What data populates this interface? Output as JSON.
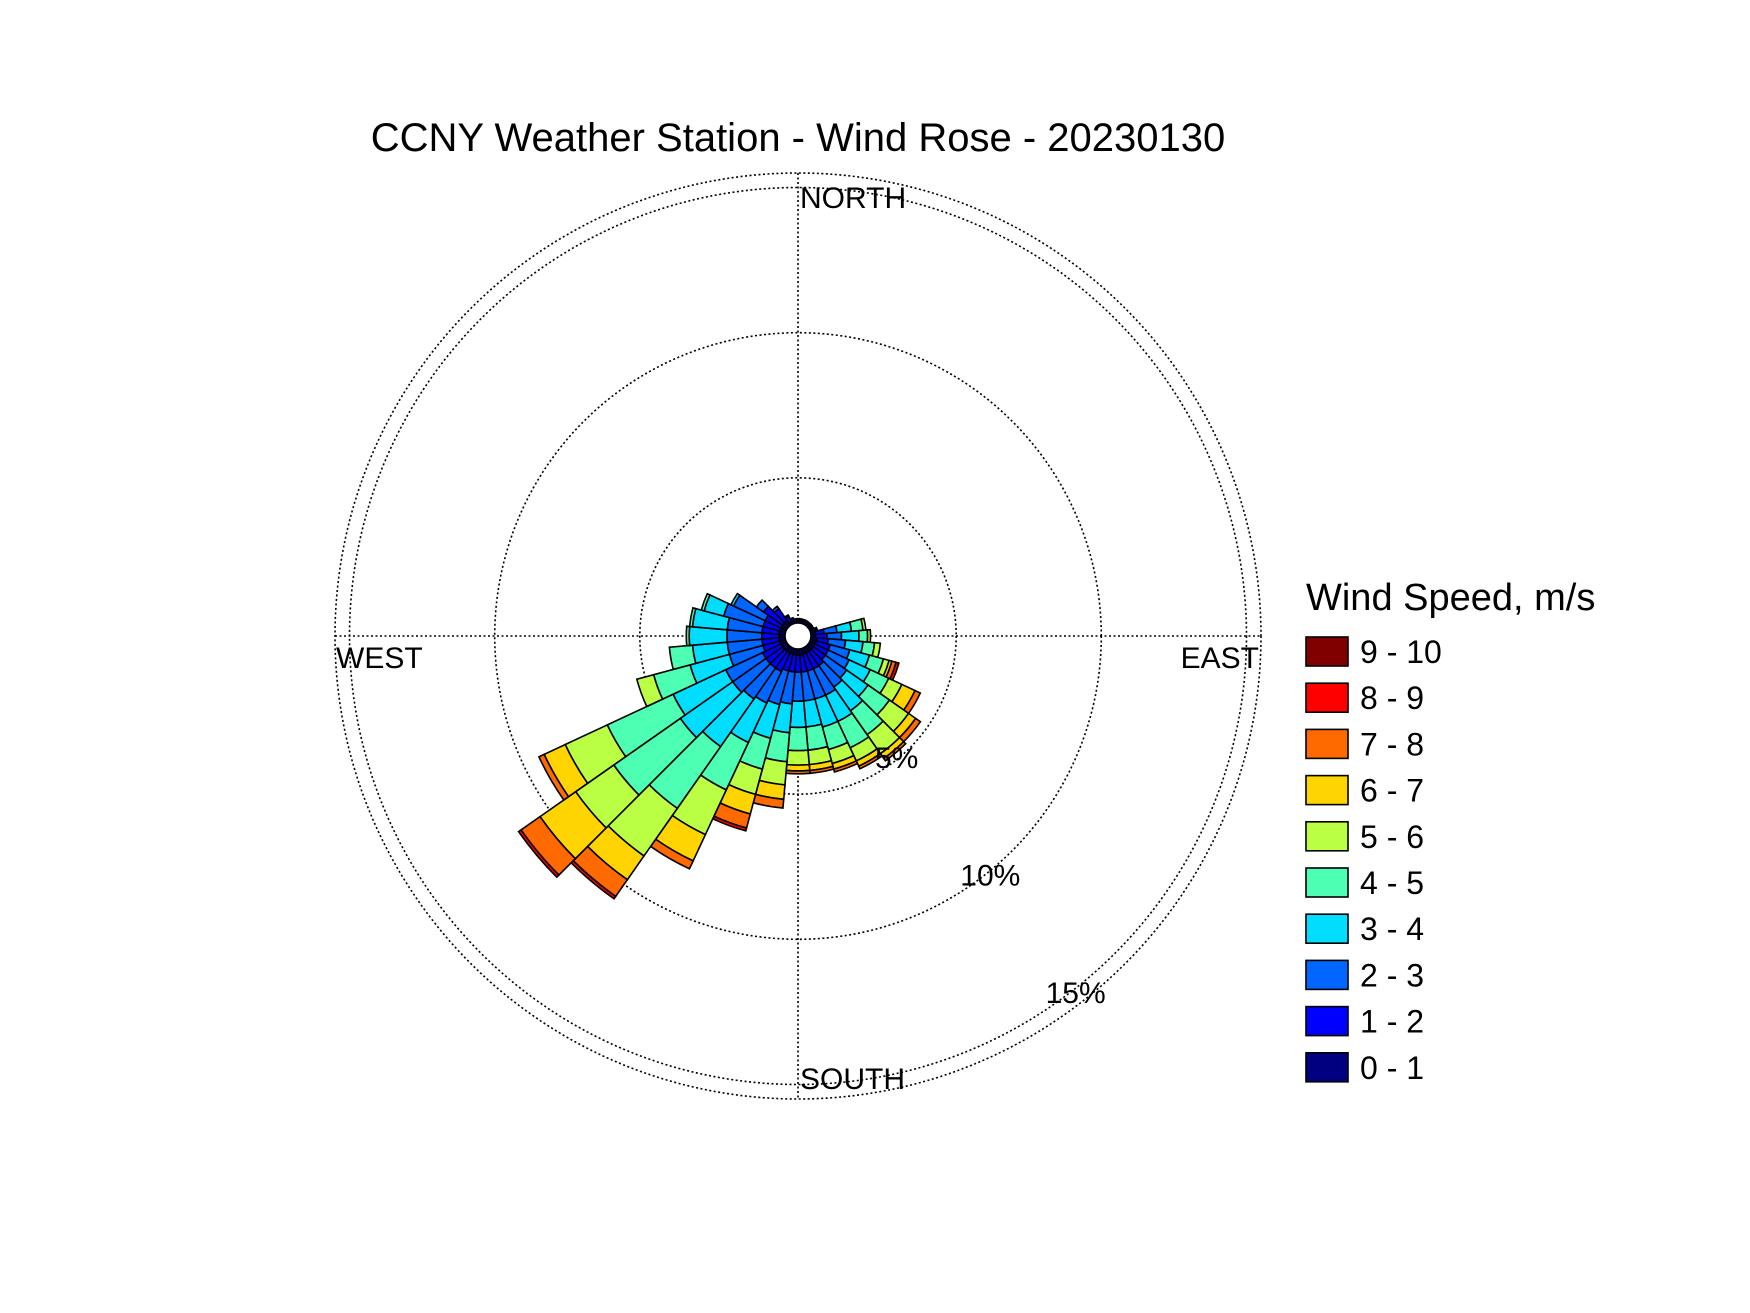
{
  "chart_data": {
    "type": "wind-rose",
    "title": "CCNY Weather Station - Wind Rose - 20230130",
    "directions": {
      "north": "NORTH",
      "south": "SOUTH",
      "east": "EAST",
      "west": "WEST"
    },
    "ring_values": [
      5,
      10,
      15
    ],
    "ring_labels": [
      "5%",
      "10%",
      "15%"
    ],
    "radius_max_percent": 15.5,
    "legend": {
      "title": "Wind Speed, m/s",
      "bins": [
        "9 - 10",
        "8 - 9",
        "7 - 8",
        "6 - 7",
        "5 - 6",
        "4 - 5",
        "3 - 4",
        "2 - 3",
        "1 - 2",
        "0 - 1"
      ]
    },
    "speed_bins": [
      "0 - 1",
      "1 - 2",
      "2 - 3",
      "3 - 4",
      "4 - 5",
      "5 - 6",
      "6 - 7",
      "7 - 8",
      "8 - 9",
      "9 - 10"
    ],
    "colors": [
      "#000080",
      "#0000ff",
      "#0066ff",
      "#00ddff",
      "#4dffb3",
      "#bbff44",
      "#ffd400",
      "#ff6a00",
      "#ff0000",
      "#800000"
    ],
    "direction_width_deg": 10,
    "series": [
      {
        "direction_deg": 0,
        "values": [
          0.1,
          0.05,
          0.0,
          0,
          0,
          0,
          0,
          0,
          0,
          0
        ]
      },
      {
        "direction_deg": 10,
        "values": [
          0.1,
          0.05,
          0.0,
          0,
          0,
          0,
          0,
          0,
          0,
          0
        ]
      },
      {
        "direction_deg": 20,
        "values": [
          0.1,
          0.05,
          0.0,
          0,
          0,
          0,
          0,
          0,
          0,
          0
        ]
      },
      {
        "direction_deg": 30,
        "values": [
          0.1,
          0.05,
          0.0,
          0,
          0,
          0,
          0,
          0,
          0,
          0
        ]
      },
      {
        "direction_deg": 40,
        "values": [
          0.1,
          0.05,
          0.0,
          0,
          0,
          0,
          0,
          0,
          0,
          0
        ]
      },
      {
        "direction_deg": 50,
        "values": [
          0.1,
          0.05,
          0.0,
          0,
          0,
          0,
          0,
          0,
          0,
          0
        ]
      },
      {
        "direction_deg": 60,
        "values": [
          0.1,
          0.05,
          0.0,
          0,
          0,
          0,
          0,
          0,
          0,
          0
        ]
      },
      {
        "direction_deg": 70,
        "values": [
          0.1,
          0.1,
          0.05,
          0,
          0,
          0,
          0,
          0,
          0,
          0
        ]
      },
      {
        "direction_deg": 80,
        "values": [
          0.15,
          0.3,
          0.45,
          0.5,
          0.4,
          0.1,
          0,
          0,
          0,
          0
        ]
      },
      {
        "direction_deg": 90,
        "values": [
          0.15,
          0.4,
          0.5,
          0.6,
          0.3,
          0.1,
          0,
          0,
          0,
          0
        ]
      },
      {
        "direction_deg": 100,
        "values": [
          0.2,
          0.4,
          0.6,
          0.6,
          0.4,
          0.2,
          0,
          0,
          0,
          0
        ]
      },
      {
        "direction_deg": 110,
        "values": [
          0.2,
          0.5,
          0.7,
          0.7,
          0.5,
          0.2,
          0.1,
          0.15,
          0.1,
          0
        ]
      },
      {
        "direction_deg": 120,
        "values": [
          0.2,
          0.5,
          0.8,
          0.8,
          0.7,
          0.5,
          0.5,
          0.2,
          0,
          0
        ]
      },
      {
        "direction_deg": 130,
        "values": [
          0.2,
          0.5,
          0.9,
          0.9,
          0.9,
          0.8,
          0.3,
          0.2,
          0,
          0
        ]
      },
      {
        "direction_deg": 140,
        "values": [
          0.2,
          0.6,
          0.9,
          1.0,
          1.0,
          0.8,
          0.2,
          0.1,
          0,
          0
        ]
      },
      {
        "direction_deg": 150,
        "values": [
          0.2,
          0.6,
          1.0,
          1.0,
          1.0,
          0.5,
          0.2,
          0.1,
          0,
          0
        ]
      },
      {
        "direction_deg": 160,
        "values": [
          0.2,
          0.6,
          1.0,
          1.0,
          0.8,
          0.5,
          0.2,
          0.1,
          0,
          0
        ]
      },
      {
        "direction_deg": 170,
        "values": [
          0.2,
          0.6,
          1.0,
          0.9,
          0.8,
          0.5,
          0.2,
          0.1,
          0,
          0
        ]
      },
      {
        "direction_deg": 180,
        "values": [
          0.2,
          0.6,
          1.0,
          0.9,
          0.8,
          0.5,
          0.2,
          0.1,
          0,
          0
        ]
      },
      {
        "direction_deg": 190,
        "values": [
          0.2,
          0.6,
          1.1,
          1.0,
          1.0,
          0.8,
          0.5,
          0.3,
          0,
          0
        ]
      },
      {
        "direction_deg": 200,
        "values": [
          0.2,
          0.6,
          1.2,
          1.2,
          1.1,
          0.9,
          0.7,
          0.5,
          0.1,
          0
        ]
      },
      {
        "direction_deg": 210,
        "values": [
          0.2,
          0.7,
          1.2,
          1.5,
          1.8,
          1.7,
          1.0,
          0.3,
          0,
          0
        ]
      },
      {
        "direction_deg": 220,
        "values": [
          0.2,
          0.7,
          1.3,
          2.0,
          2.6,
          2.0,
          1.0,
          0.7,
          0.1,
          0
        ]
      },
      {
        "direction_deg": 230,
        "values": [
          0.2,
          0.7,
          1.4,
          2.2,
          2.8,
          1.6,
          1.5,
          0.8,
          0.1,
          0
        ]
      },
      {
        "direction_deg": 240,
        "values": [
          0.2,
          0.7,
          1.4,
          2.0,
          2.5,
          1.6,
          0.8,
          0.2,
          0,
          0
        ]
      },
      {
        "direction_deg": 250,
        "values": [
          0.2,
          0.6,
          1.2,
          1.4,
          1.3,
          0.6,
          0,
          0,
          0,
          0
        ]
      },
      {
        "direction_deg": 260,
        "values": [
          0.2,
          0.6,
          1.2,
          1.2,
          0.8,
          0,
          0,
          0,
          0,
          0
        ]
      },
      {
        "direction_deg": 270,
        "values": [
          0.2,
          0.6,
          1.2,
          1.3,
          0.1,
          0,
          0,
          0,
          0,
          0
        ]
      },
      {
        "direction_deg": 280,
        "values": [
          0.2,
          0.6,
          1.2,
          1.2,
          0.1,
          0,
          0,
          0,
          0,
          0
        ]
      },
      {
        "direction_deg": 290,
        "values": [
          0.2,
          0.6,
          1.4,
          0.7,
          0.1,
          0,
          0,
          0,
          0,
          0
        ]
      },
      {
        "direction_deg": 300,
        "values": [
          0.2,
          0.6,
          1.2,
          0.1,
          0,
          0,
          0,
          0,
          0,
          0
        ]
      },
      {
        "direction_deg": 310,
        "values": [
          0.2,
          0.8,
          0.3,
          0,
          0,
          0,
          0,
          0,
          0,
          0
        ]
      },
      {
        "direction_deg": 320,
        "values": [
          0.2,
          0.5,
          0.1,
          0,
          0,
          0,
          0,
          0,
          0,
          0
        ]
      },
      {
        "direction_deg": 330,
        "values": [
          0.1,
          0.2,
          0.05,
          0,
          0,
          0,
          0,
          0,
          0,
          0
        ]
      },
      {
        "direction_deg": 340,
        "values": [
          0.1,
          0.1,
          0.0,
          0,
          0,
          0,
          0,
          0,
          0,
          0
        ]
      },
      {
        "direction_deg": 350,
        "values": [
          0.1,
          0.05,
          0.0,
          0,
          0,
          0,
          0,
          0,
          0,
          0
        ]
      }
    ]
  }
}
